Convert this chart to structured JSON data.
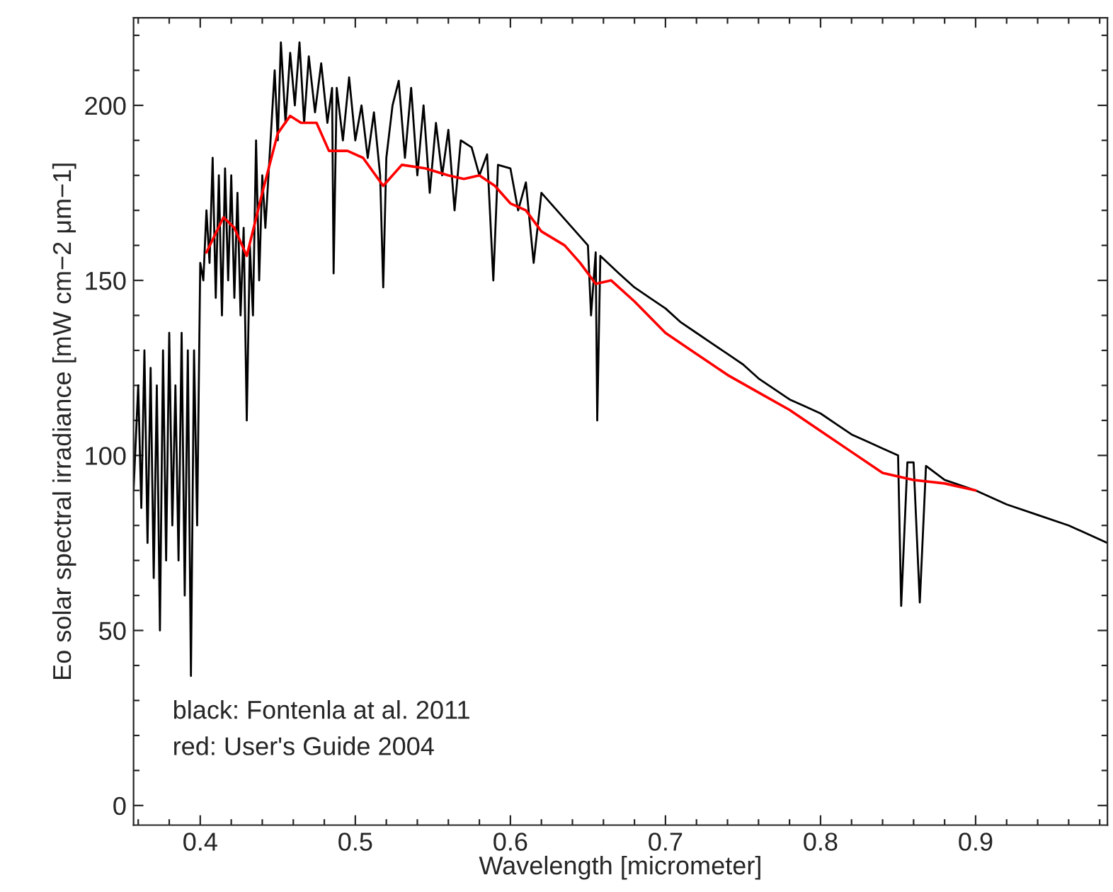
{
  "chart_data": {
    "type": "line",
    "xlabel": "Wavelength [micrometer]",
    "ylabel": "Eo solar spectral irradiance [mW cm−2 μm−1]",
    "xlim": [
      0.357,
      0.985
    ],
    "ylim": [
      -5.6,
      225
    ],
    "xticks": [
      {
        "value": 0.36,
        "label": null
      },
      {
        "value": 0.38,
        "label": null
      },
      0.4,
      {
        "value": 0.42,
        "label": null
      },
      {
        "value": 0.44,
        "label": null
      },
      {
        "value": 0.46,
        "label": null
      },
      {
        "value": 0.48,
        "label": null
      },
      0.5,
      {
        "value": 0.52,
        "label": null
      },
      {
        "value": 0.54,
        "label": null
      },
      {
        "value": 0.56,
        "label": null
      },
      {
        "value": 0.58,
        "label": null
      },
      0.6,
      {
        "value": 0.62,
        "label": null
      },
      {
        "value": 0.64,
        "label": null
      },
      {
        "value": 0.66,
        "label": null
      },
      {
        "value": 0.68,
        "label": null
      },
      0.7,
      {
        "value": 0.72,
        "label": null
      },
      {
        "value": 0.74,
        "label": null
      },
      {
        "value": 0.76,
        "label": null
      },
      {
        "value": 0.78,
        "label": null
      },
      0.8,
      {
        "value": 0.82,
        "label": null
      },
      {
        "value": 0.84,
        "label": null
      },
      {
        "value": 0.86,
        "label": null
      },
      {
        "value": 0.88,
        "label": null
      },
      0.9,
      {
        "value": 0.92,
        "label": null
      },
      {
        "value": 0.94,
        "label": null
      },
      {
        "value": 0.96,
        "label": null
      },
      {
        "value": 0.98,
        "label": null
      }
    ],
    "yticks": [
      0,
      {
        "value": 10,
        "label": null
      },
      {
        "value": 20,
        "label": null
      },
      {
        "value": 30,
        "label": null
      },
      {
        "value": 40,
        "label": null
      },
      50,
      {
        "value": 60,
        "label": null
      },
      {
        "value": 70,
        "label": null
      },
      {
        "value": 80,
        "label": null
      },
      {
        "value": 90,
        "label": null
      },
      100,
      {
        "value": 110,
        "label": null
      },
      {
        "value": 120,
        "label": null
      },
      {
        "value": 130,
        "label": null
      },
      {
        "value": 140,
        "label": null
      },
      150,
      {
        "value": 160,
        "label": null
      },
      {
        "value": 170,
        "label": null
      },
      {
        "value": 180,
        "label": null
      },
      {
        "value": 190,
        "label": null
      },
      200,
      {
        "value": 210,
        "label": null
      },
      {
        "value": 220,
        "label": null
      }
    ],
    "grid": false,
    "legend": false,
    "annotations": [
      "black: Fontenla at al. 2011",
      "red: User's Guide 2004"
    ],
    "series": [
      {
        "color": "#000000",
        "x": [
          0.357,
          0.36,
          0.362,
          0.364,
          0.366,
          0.368,
          0.37,
          0.372,
          0.374,
          0.376,
          0.378,
          0.38,
          0.382,
          0.384,
          0.386,
          0.388,
          0.39,
          0.392,
          0.394,
          0.396,
          0.398,
          0.4,
          0.402,
          0.404,
          0.406,
          0.408,
          0.41,
          0.412,
          0.414,
          0.416,
          0.418,
          0.42,
          0.422,
          0.424,
          0.426,
          0.428,
          0.43,
          0.432,
          0.434,
          0.436,
          0.438,
          0.44,
          0.442,
          0.446,
          0.448,
          0.45,
          0.452,
          0.455,
          0.458,
          0.461,
          0.464,
          0.467,
          0.47,
          0.474,
          0.478,
          0.482,
          0.485,
          0.486,
          0.488,
          0.492,
          0.496,
          0.5,
          0.504,
          0.508,
          0.512,
          0.516,
          0.518,
          0.52,
          0.524,
          0.528,
          0.532,
          0.536,
          0.54,
          0.544,
          0.548,
          0.552,
          0.556,
          0.56,
          0.564,
          0.568,
          0.575,
          0.58,
          0.585,
          0.589,
          0.592,
          0.6,
          0.605,
          0.61,
          0.615,
          0.62,
          0.63,
          0.64,
          0.65,
          0.652,
          0.655,
          0.656,
          0.658,
          0.67,
          0.68,
          0.69,
          0.7,
          0.71,
          0.72,
          0.73,
          0.74,
          0.75,
          0.76,
          0.77,
          0.78,
          0.79,
          0.8,
          0.81,
          0.82,
          0.83,
          0.84,
          0.85,
          0.852,
          0.856,
          0.86,
          0.864,
          0.868,
          0.88,
          0.9,
          0.92,
          0.94,
          0.96,
          0.985
        ],
        "values": [
          90,
          120,
          85,
          130,
          75,
          125,
          65,
          120,
          50,
          130,
          70,
          135,
          80,
          120,
          70,
          135,
          60,
          130,
          37,
          130,
          80,
          155,
          150,
          170,
          155,
          185,
          145,
          180,
          140,
          182,
          150,
          180,
          145,
          175,
          140,
          165,
          110,
          160,
          140,
          190,
          150,
          180,
          165,
          195,
          210,
          190,
          218,
          195,
          215,
          200,
          218,
          195,
          214,
          198,
          212,
          195,
          205,
          152,
          205,
          190,
          208,
          190,
          200,
          185,
          198,
          180,
          148,
          185,
          200,
          207,
          185,
          205,
          180,
          200,
          175,
          195,
          180,
          193,
          170,
          190,
          188,
          180,
          186,
          150,
          183,
          182,
          170,
          178,
          155,
          175,
          170,
          165,
          160,
          140,
          158,
          110,
          157,
          152,
          148,
          145,
          142,
          138,
          135,
          132,
          129,
          126,
          122,
          119,
          116,
          114,
          112,
          109,
          106,
          104,
          102,
          100,
          57,
          98,
          98,
          58,
          97,
          93,
          90,
          86,
          83,
          80,
          75
        ]
      },
      {
        "color": "#ff0000",
        "x": [
          0.404,
          0.415,
          0.422,
          0.43,
          0.44,
          0.45,
          0.458,
          0.465,
          0.475,
          0.483,
          0.495,
          0.505,
          0.518,
          0.53,
          0.545,
          0.56,
          0.57,
          0.58,
          0.59,
          0.6,
          0.61,
          0.62,
          0.635,
          0.645,
          0.655,
          0.665,
          0.68,
          0.7,
          0.72,
          0.74,
          0.76,
          0.78,
          0.8,
          0.82,
          0.84,
          0.86,
          0.88,
          0.9
        ],
        "values": [
          158,
          168,
          165,
          157,
          175,
          192,
          197,
          195,
          195,
          187,
          187,
          185,
          177,
          183,
          182,
          180,
          179,
          180,
          177,
          172,
          170,
          164,
          160,
          155,
          149,
          150,
          144,
          135,
          129,
          123,
          118,
          113,
          107,
          101,
          95,
          93,
          92,
          90
        ]
      }
    ]
  }
}
